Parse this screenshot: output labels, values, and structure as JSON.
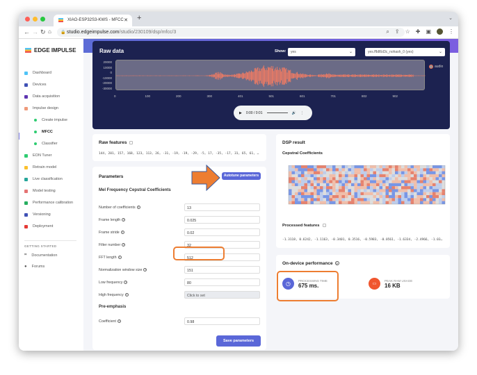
{
  "browser": {
    "tab_title": "XIAO-ESP32S3-KWS - MFCC",
    "url_host": "studio.edgeimpulse.com",
    "url_path": "/studio/230109/dsp/mfcc/3"
  },
  "sidebar": {
    "logo": "EDGE IMPULSE",
    "items": [
      {
        "label": "Dashboard",
        "color": "#4fc3f7"
      },
      {
        "label": "Devices",
        "color": "#3f51b5"
      },
      {
        "label": "Data acquisition",
        "color": "#5e35b1"
      },
      {
        "label": "Impulse design",
        "color": "#ef9a7a"
      },
      {
        "label": "Create impulse",
        "sub": true
      },
      {
        "label": "MFCC",
        "sub": true,
        "active": true
      },
      {
        "label": "Classifier",
        "sub": true
      },
      {
        "label": "EON Tuner",
        "color": "#2ecc71"
      },
      {
        "label": "Retrain model",
        "color": "#fbc02d"
      },
      {
        "label": "Live classification",
        "color": "#26a69a"
      },
      {
        "label": "Model testing",
        "color": "#e57373"
      },
      {
        "label": "Performance calibration",
        "color": "#27ae60"
      },
      {
        "label": "Versioning",
        "color": "#3f51b5"
      },
      {
        "label": "Deployment",
        "color": "#e53935"
      }
    ],
    "section": "GETTING STARTED",
    "help": [
      {
        "label": "Documentation"
      },
      {
        "label": "Forums"
      }
    ]
  },
  "raw_data": {
    "title": "Raw data",
    "show_label": "Show:",
    "show_value": "yes",
    "sample_value": "yes.ffb86d3c_nohash_0 (yes)",
    "y_ticks": [
      "20000",
      "10000",
      "0",
      "-10000",
      "-20000",
      "-30000"
    ],
    "x_ticks": [
      "0",
      "100",
      "200",
      "300",
      "401",
      "501",
      "601",
      "701",
      "802",
      "902"
    ],
    "legend": "audio",
    "series_color": "#f57c62",
    "audio_time": "0:00 / 0:01"
  },
  "raw_features": {
    "title": "Raw features",
    "values": "144, 201, 157, 168, 123, 113, 26, -31, -19, -19, -29, -5, 17, -35, -17, 31, 65, 61, …"
  },
  "parameters": {
    "title": "Parameters",
    "autotune": "Autotune parameters",
    "mfcc_title": "Mel Frequency Cepstral Coefficients",
    "fields": [
      {
        "label": "Number of coefficients",
        "value": "13"
      },
      {
        "label": "Frame length",
        "value": "0.025"
      },
      {
        "label": "Frame stride",
        "value": "0.02"
      },
      {
        "label": "Filter number",
        "value": "32"
      },
      {
        "label": "FFT length",
        "value": "512"
      },
      {
        "label": "Normalization window size",
        "value": "151"
      },
      {
        "label": "Low frequency",
        "value": "80"
      },
      {
        "label": "High frequency",
        "value": "",
        "placeholder": "Click to set"
      }
    ],
    "preemph_title": "Pre-emphasis",
    "coefficient": {
      "label": "Coefficient",
      "value": "0.98"
    },
    "save": "Save parameters"
  },
  "dsp": {
    "title": "DSP result",
    "chart_title": "Cepstral Coefficients",
    "processed_title": "Processed features",
    "processed": "-1.3118, 0.6242, -1.1163, -0.3401, 0.3516, -0.5983, -0.0561, -1.6334, -2.4966, -1.03…"
  },
  "performance": {
    "title": "On-device performance",
    "time_label": "PROCESSING TIME",
    "time_value": "675 ms.",
    "ram_label": "PEAK RAM USAGE",
    "ram_value": "16 KB"
  },
  "annotation_color": "#ed7d31"
}
